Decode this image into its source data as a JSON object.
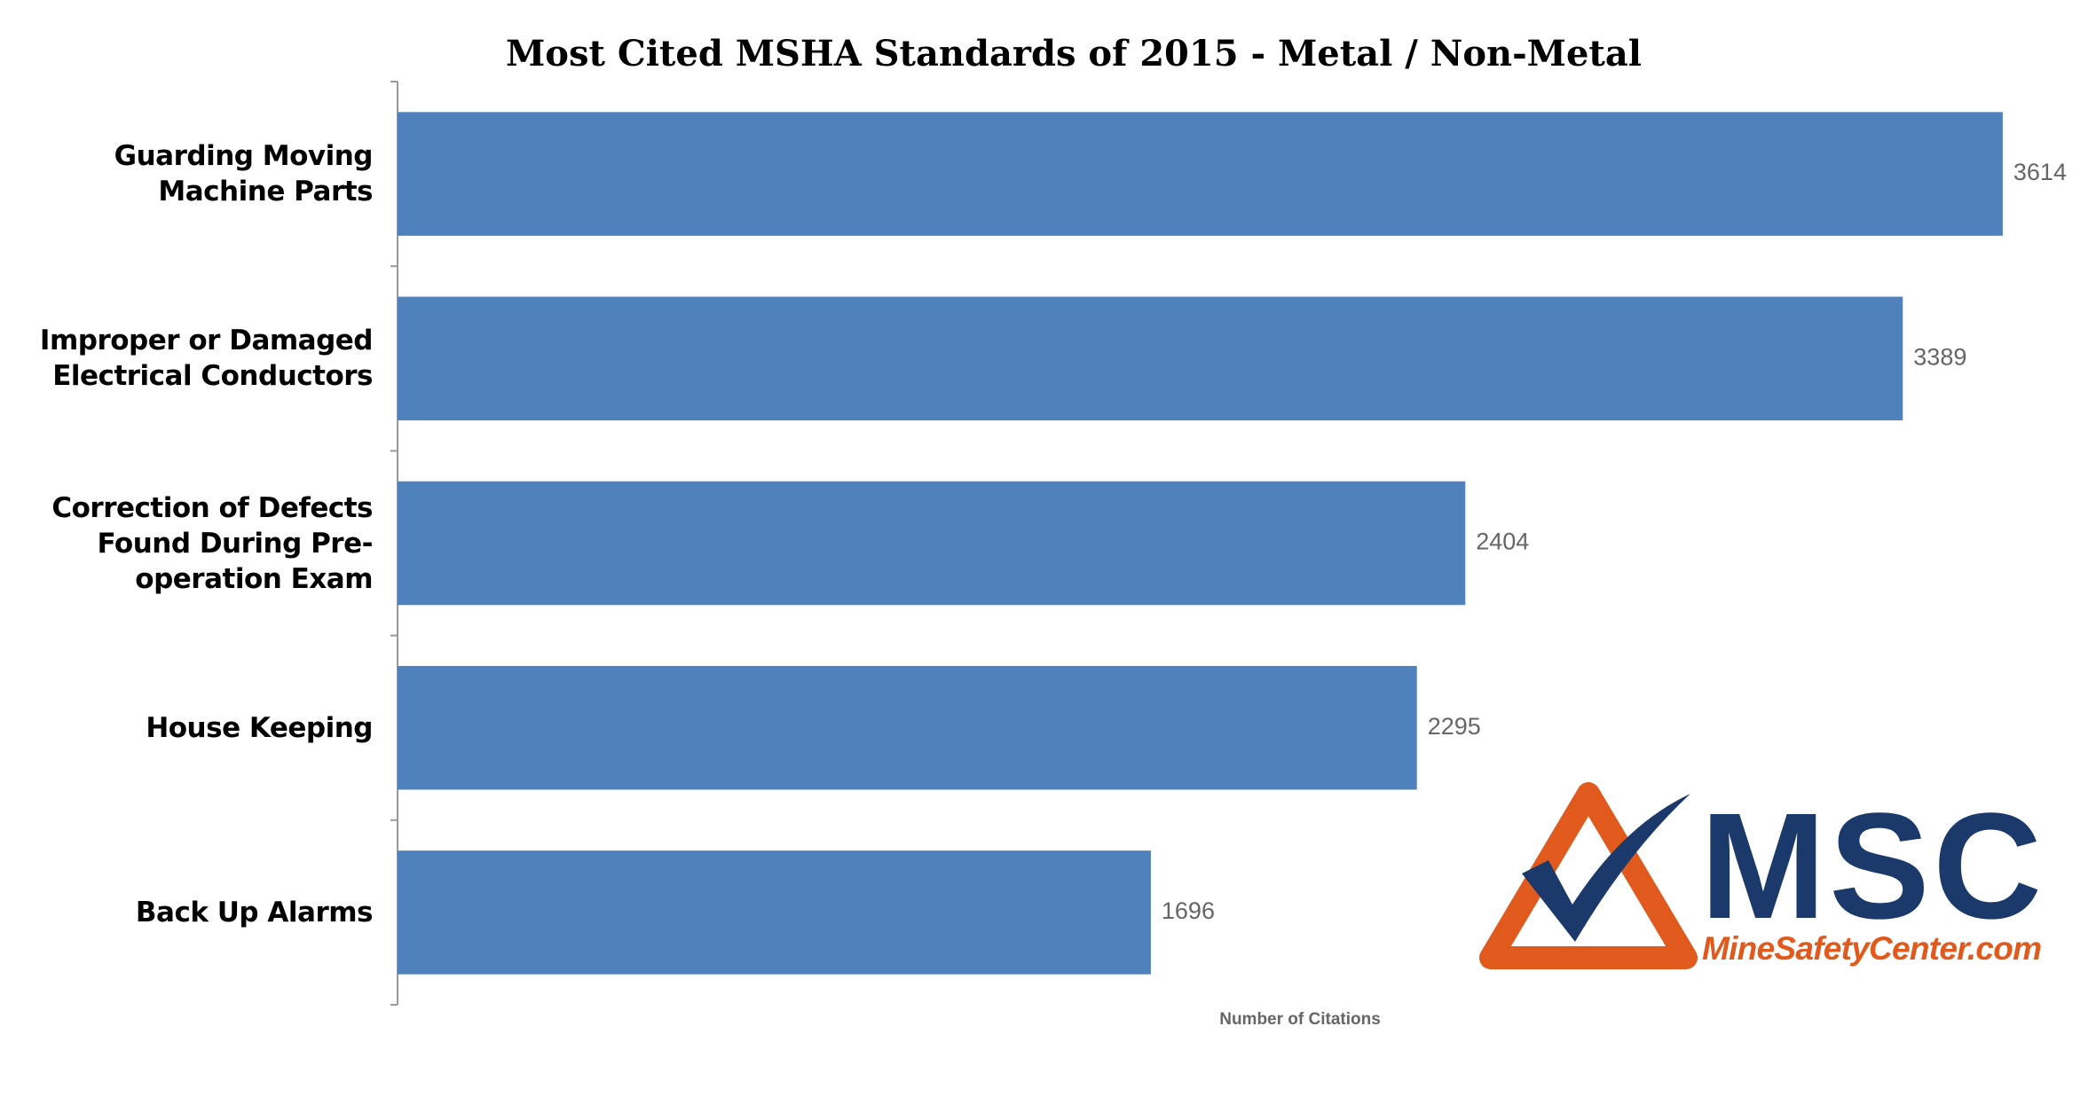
{
  "chart_data": {
    "type": "barh",
    "title": "Most Cited MSHA Standards of 2015 - Metal / Non-Metal",
    "categories": [
      "Guarding Moving Machine Parts",
      "Improper or Damaged Electrical Conductors",
      "Correction of Defects Found During Pre-operation Exam",
      "House Keeping",
      "Back Up Alarms"
    ],
    "values": [
      3614,
      3389,
      2404,
      2295,
      1696
    ],
    "color": "#4f81bd",
    "xlim": [
      0,
      3800
    ],
    "xlabel": "Number of Citations"
  },
  "logo": {
    "text": "MSC",
    "url": "MineSafetyCenter.com"
  }
}
